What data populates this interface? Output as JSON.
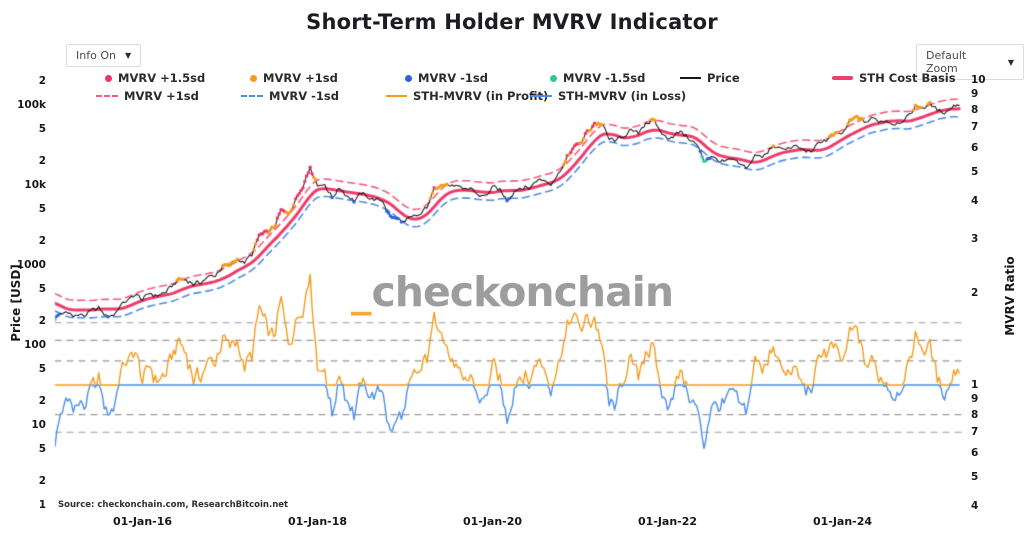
{
  "title": "Short-Term Holder MVRV Indicator",
  "controls": {
    "info_label": "Info On",
    "zoom_label": "Default Zoom",
    "caret": "▼"
  },
  "watermark": {
    "prefix": "_",
    "name": "checkonchain"
  },
  "source": "Source: checkonchain.com, ResearchBitcoin.net",
  "chart_data": {
    "type": "line",
    "title": "Short-Term Holder MVRV Indicator",
    "ylabel_left": "Price [USD]",
    "ylabel_right": "MVRV Ratio",
    "yaxis_left": {
      "scale": "log",
      "range": [
        1,
        200000
      ],
      "ticks": [
        {
          "t": "2",
          "v": 200000
        },
        {
          "t": "100k",
          "v": 100000
        },
        {
          "t": "5",
          "v": 50000
        },
        {
          "t": "2",
          "v": 20000
        },
        {
          "t": "10k",
          "v": 10000
        },
        {
          "t": "5",
          "v": 5000
        },
        {
          "t": "2",
          "v": 2000
        },
        {
          "t": "1000",
          "v": 1000
        },
        {
          "t": "5",
          "v": 500
        },
        {
          "t": "2",
          "v": 200
        },
        {
          "t": "100",
          "v": 100
        },
        {
          "t": "5",
          "v": 50
        },
        {
          "t": "2",
          "v": 20
        },
        {
          "t": "10",
          "v": 10
        },
        {
          "t": "5",
          "v": 5
        },
        {
          "t": "2",
          "v": 2
        },
        {
          "t": "1",
          "v": 1
        }
      ]
    },
    "yaxis_right": {
      "scale": "log",
      "range": [
        0.4,
        10
      ],
      "ticks": [
        {
          "t": "10",
          "v": 10
        },
        {
          "t": "9",
          "v": 9
        },
        {
          "t": "8",
          "v": 8
        },
        {
          "t": "7",
          "v": 7
        },
        {
          "t": "6",
          "v": 6
        },
        {
          "t": "5",
          "v": 5
        },
        {
          "t": "4",
          "v": 4
        },
        {
          "t": "3",
          "v": 3
        },
        {
          "t": "2",
          "v": 2
        },
        {
          "t": "1",
          "v": 1
        },
        {
          "t": "9",
          "v": 0.9
        },
        {
          "t": "8",
          "v": 0.8
        },
        {
          "t": "7",
          "v": 0.7
        },
        {
          "t": "6",
          "v": 0.6
        },
        {
          "t": "5",
          "v": 0.5
        },
        {
          "t": "4",
          "v": 0.4
        }
      ]
    },
    "x_ticks": [
      {
        "t": "01-Jan-16",
        "year": 2016
      },
      {
        "t": "01-Jan-18",
        "year": 2018
      },
      {
        "t": "01-Jan-20",
        "year": 2020
      },
      {
        "t": "01-Jan-22",
        "year": 2022
      },
      {
        "t": "01-Jan-24",
        "year": 2024
      }
    ],
    "legend": {
      "row1": [
        {
          "label": "MVRV +1.5sd",
          "marker": "dot",
          "color": "#f0335f"
        },
        {
          "label": "MVRV +1sd",
          "marker": "dot",
          "color": "#f39c1d"
        },
        {
          "label": "MVRV -1sd",
          "marker": "dot",
          "color": "#2d5fe0"
        },
        {
          "label": "MVRV -1.5sd",
          "marker": "dot",
          "color": "#2fc89b"
        },
        {
          "label": "Price",
          "marker": "line",
          "color": "#16161d"
        },
        {
          "label": "STH Cost Basis",
          "marker": "line-thick",
          "color": "#ef3f6e"
        }
      ],
      "row2": [
        {
          "label": "MVRV +1sd",
          "marker": "dash",
          "color": "#f35c7f"
        },
        {
          "label": "MVRV -1sd",
          "marker": "dash",
          "color": "#4f8ce8"
        },
        {
          "label": "STH-MVRV (in Profit)",
          "marker": "line",
          "color": "#f39c1d"
        },
        {
          "label": "STH-MVRV (in Loss)",
          "marker": "line",
          "color": "#4a8fe8"
        }
      ]
    },
    "colors": {
      "price": "#17171c",
      "cost_basis": "#ee3c6c",
      "band_plus": "#f35c7f",
      "band_minus": "#4f8ce8",
      "profit": "#f39c1d",
      "loss": "#4a8fe8",
      "refline": "#999999",
      "dot_plus15": "#f0335f",
      "dot_plus1": "#f39c1d",
      "dot_minus1": "#2d5fe0",
      "dot_minus15": "#2fc89b"
    },
    "series": {
      "x_monthly_start": "2015-01",
      "price": [
        220,
        255,
        245,
        235,
        235,
        260,
        285,
        230,
        236,
        315,
        360,
        430,
        370,
        435,
        415,
        450,
        530,
        670,
        655,
        575,
        610,
        700,
        745,
        960,
        965,
        1190,
        1080,
        1350,
        2300,
        2480,
        2875,
        4700,
        4340,
        6450,
        10100,
        17000,
        10200,
        10300,
        7000,
        9250,
        7500,
        6400,
        7750,
        7000,
        6600,
        6300,
        4000,
        3750,
        3450,
        3850,
        4100,
        5300,
        8550,
        10800,
        10000,
        9600,
        8300,
        9150,
        7550,
        7200,
        9350,
        8550,
        6450,
        8650,
        9450,
        9150,
        11350,
        11650,
        10800,
        13800,
        19700,
        29000,
        33100,
        45100,
        58800,
        57750,
        37350,
        35000,
        41500,
        47150,
        43800,
        61300,
        63000,
        46200,
        38500,
        43200,
        45500,
        37650,
        31800,
        19950,
        23300,
        20050,
        19400,
        20500,
        17150,
        16550,
        23100,
        23150,
        28450,
        29250,
        27200,
        30450,
        29250,
        26000,
        26950,
        34650,
        37700,
        42250,
        42550,
        61200,
        71300,
        60650,
        67500,
        62700,
        64600,
        59100,
        63350,
        70200,
        96400,
        93400,
        102400,
        84350,
        82550,
        94200,
        104000
      ],
      "sth_mvrv": [
        0.62,
        0.88,
        0.92,
        0.84,
        0.86,
        0.96,
        1.04,
        0.78,
        0.86,
        1.12,
        1.22,
        1.28,
        1.02,
        1.14,
        1.02,
        1.08,
        1.22,
        1.45,
        1.22,
        1.04,
        1.08,
        1.18,
        1.2,
        1.46,
        1.28,
        1.42,
        1.12,
        1.3,
        1.85,
        1.45,
        1.42,
        1.95,
        1.3,
        1.62,
        1.95,
        2.1,
        1.12,
        1.12,
        0.8,
        1.1,
        0.9,
        0.82,
        1.0,
        0.92,
        0.96,
        0.94,
        0.68,
        0.76,
        0.88,
        1.06,
        1.1,
        1.3,
        1.62,
        1.52,
        1.22,
        1.12,
        0.94,
        1.1,
        0.88,
        0.92,
        1.16,
        1.04,
        0.72,
        1.06,
        1.1,
        1.02,
        1.2,
        1.16,
        1.0,
        1.25,
        1.46,
        1.72,
        1.56,
        1.64,
        1.56,
        1.34,
        0.78,
        0.9,
        1.06,
        1.24,
        1.04,
        1.36,
        1.22,
        0.96,
        0.86,
        1.02,
        1.08,
        0.92,
        0.78,
        0.62,
        0.94,
        0.82,
        0.9,
        0.96,
        0.78,
        0.86,
        1.26,
        1.14,
        1.32,
        1.2,
        1.04,
        1.16,
        1.06,
        0.9,
        1.02,
        1.3,
        1.3,
        1.34,
        1.1,
        1.46,
        1.56,
        1.14,
        1.2,
        1.04,
        1.08,
        0.88,
        1.02,
        1.14,
        1.5,
        1.28,
        1.36,
        1.04,
        0.9,
        1.1,
        1.14
      ],
      "band_multipliers": {
        "plus_1sd": 1.32,
        "minus_1sd": 0.8
      },
      "reference_lines_mvrv": [
        1.6,
        1.4,
        1.2,
        0.8,
        0.7
      ],
      "baseline_mvrv": 1.0,
      "dot_thresholds": {
        "plus15": 1.6,
        "plus1": 1.32,
        "minus1": 0.8,
        "minus15": 0.7
      }
    }
  }
}
